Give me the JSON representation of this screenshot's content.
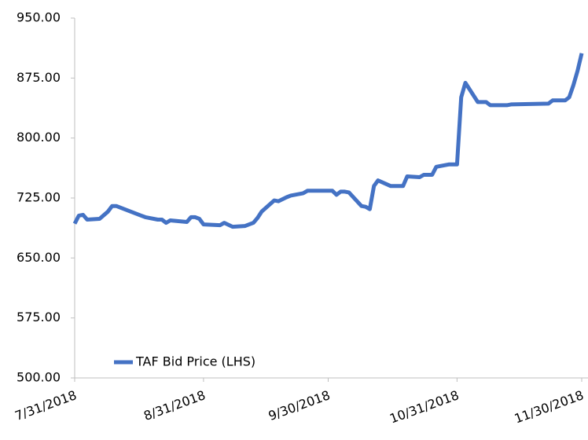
{
  "chart_data": {
    "type": "line",
    "x": [
      "7/31/2018",
      "8/1/2018",
      "8/2/2018",
      "8/3/2018",
      "8/6/2018",
      "8/8/2018",
      "8/9/2018",
      "8/10/2018",
      "8/13/2018",
      "8/16/2018",
      "8/17/2018",
      "8/20/2018",
      "8/21/2018",
      "8/22/2018",
      "8/23/2018",
      "8/27/2018",
      "8/28/2018",
      "8/29/2018",
      "8/30/2018",
      "8/31/2018",
      "9/4/2018",
      "9/5/2018",
      "9/7/2018",
      "9/10/2018",
      "9/12/2018",
      "9/13/2018",
      "9/14/2018",
      "9/17/2018",
      "9/18/2018",
      "9/20/2018",
      "9/21/2018",
      "9/24/2018",
      "9/25/2018",
      "9/28/2018",
      "10/1/2018",
      "10/2/2018",
      "10/3/2018",
      "10/4/2018",
      "10/5/2018",
      "10/8/2018",
      "10/9/2018",
      "10/10/2018",
      "10/11/2018",
      "10/12/2018",
      "10/15/2018",
      "10/18/2018",
      "10/19/2018",
      "10/22/2018",
      "10/23/2018",
      "10/25/2018",
      "10/26/2018",
      "10/29/2018",
      "10/31/2018",
      "11/1/2018",
      "11/2/2018",
      "11/5/2018",
      "11/7/2018",
      "11/8/2018",
      "11/12/2018",
      "11/13/2018",
      "11/22/2018",
      "11/23/2018",
      "11/26/2018",
      "11/27/2018",
      "11/28/2018",
      "11/29/2018",
      "11/30/2018"
    ],
    "series": [
      {
        "name": "TAF Bid Price (LHS)",
        "color": "#4472c4",
        "values": [
          693,
          703,
          704,
          698,
          699,
          708,
          715,
          715,
          709,
          703,
          701,
          698,
          698,
          694,
          697,
          695,
          701,
          701,
          699,
          692,
          691,
          694,
          689,
          690,
          694,
          700,
          708,
          722,
          721,
          726,
          728,
          731,
          734,
          734,
          734,
          729,
          733,
          733,
          732,
          715,
          714,
          711,
          740,
          747,
          740,
          740,
          752,
          751,
          754,
          754,
          764,
          767,
          767,
          851,
          869,
          845,
          845,
          841,
          841,
          842,
          843,
          847,
          847,
          851,
          866,
          884,
          906
        ]
      }
    ],
    "xlim": [
      "7/31/2018",
      "11/30/2018"
    ],
    "xticks": [
      "7/31/2018",
      "8/31/2018",
      "9/30/2018",
      "10/31/2018",
      "11/30/2018"
    ],
    "ylim": [
      500,
      950
    ],
    "yticks": [
      {
        "value": 500,
        "label": "500.00"
      },
      {
        "value": 575,
        "label": "575.00"
      },
      {
        "value": 650,
        "label": "650.00"
      },
      {
        "value": 725,
        "label": "725.00"
      },
      {
        "value": 800,
        "label": "800.00"
      },
      {
        "value": 875,
        "label": "875.00"
      },
      {
        "value": 950,
        "label": "950.00"
      }
    ],
    "grid": false,
    "legend": "lower left"
  }
}
